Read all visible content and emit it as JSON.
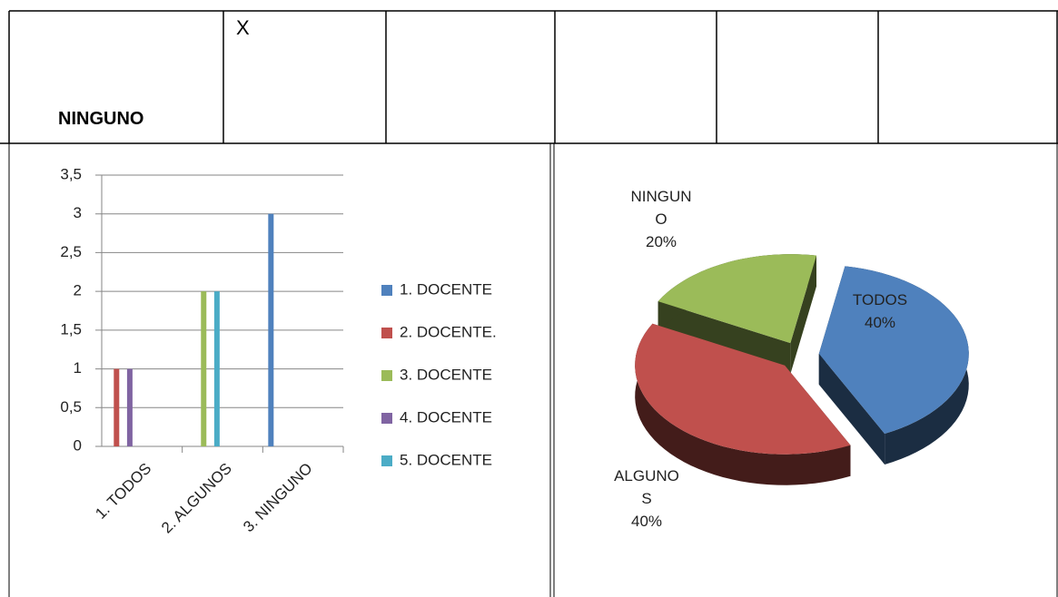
{
  "table": {
    "rows": [
      [
        "NINGUNO",
        "X"
      ]
    ]
  },
  "chart_data": [
    {
      "type": "bar",
      "categories": [
        "1. TODOS",
        "2. ALGUNOS",
        "3. NINGUNO"
      ],
      "series": [
        {
          "name": "1. DOCENTE",
          "color": "#4f81bd",
          "values": [
            0,
            0,
            3
          ]
        },
        {
          "name": "2. DOCENTE.",
          "color": "#c0504d",
          "values": [
            1,
            0,
            0
          ]
        },
        {
          "name": "3. DOCENTE",
          "color": "#9bbb59",
          "values": [
            0,
            2,
            0
          ]
        },
        {
          "name": "4. DOCENTE",
          "color": "#8064a2",
          "values": [
            1,
            0,
            0
          ]
        },
        {
          "name": "5. DOCENTE",
          "color": "#4bacc6",
          "values": [
            0,
            2,
            0
          ]
        }
      ],
      "ylim": [
        0,
        3.5
      ],
      "yticks": [
        0,
        {
          "value": 0.5,
          "label": "0,5"
        },
        1,
        {
          "value": 1.5,
          "label": "1,5"
        },
        2,
        {
          "value": 2.5,
          "label": "2,5"
        },
        3,
        {
          "value": 3.5,
          "label": "3,5"
        }
      ],
      "grid": true,
      "legend": "right"
    },
    {
      "type": "pie",
      "categories": [
        "TODOS",
        "ALGUNOS",
        "NINGUNO"
      ],
      "values": [
        40,
        40,
        20
      ],
      "value_labels": [
        "40%",
        "40%",
        "20%"
      ],
      "colors": [
        "#4f81bd",
        "#c0504d",
        "#9bbb59"
      ]
    }
  ]
}
